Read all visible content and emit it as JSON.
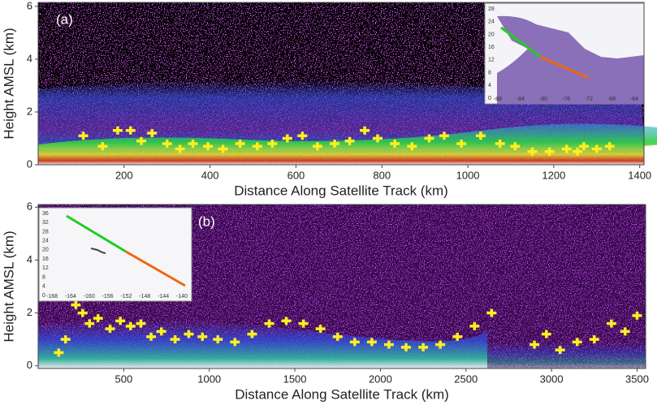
{
  "chart_data": [
    {
      "type": "scatter",
      "panel_label": "(a)",
      "x_label": "Distance Along Satellite Track (km)",
      "y_label": "Height AMSL (km)",
      "xlim": [
        0,
        1410
      ],
      "xticks": [
        200,
        400,
        600,
        800,
        1000,
        1200,
        1400
      ],
      "ylim": [
        0,
        6.15
      ],
      "yticks": [
        0,
        2,
        4,
        6
      ],
      "color": "#ffee22",
      "x": [
        105,
        150,
        185,
        215,
        240,
        265,
        300,
        330,
        360,
        395,
        430,
        470,
        510,
        545,
        580,
        615,
        650,
        690,
        725,
        760,
        790,
        830,
        870,
        910,
        945,
        985,
        1030,
        1075,
        1110,
        1150,
        1190,
        1230,
        1255,
        1270,
        1300,
        1330
      ],
      "values": [
        1.1,
        0.7,
        1.3,
        1.3,
        0.9,
        1.2,
        0.8,
        0.6,
        0.8,
        0.7,
        0.6,
        0.8,
        0.7,
        0.8,
        1.0,
        1.1,
        0.7,
        0.8,
        0.9,
        1.3,
        1.0,
        0.8,
        0.7,
        1.0,
        1.1,
        0.8,
        1.1,
        0.8,
        0.7,
        0.5,
        0.5,
        0.6,
        0.5,
        0.7,
        0.6,
        0.7
      ],
      "inset": {
        "yticks": [
          28,
          24,
          20,
          16,
          12,
          8,
          4,
          0
        ],
        "xticks": [
          -88,
          -84,
          -80,
          -76,
          -72,
          -68,
          -64
        ]
      }
    },
    {
      "type": "scatter",
      "panel_label": "(b)",
      "x_label": "Distance Along Satellite Track (km)",
      "y_label": "Height AMSL (km)",
      "xlim": [
        0,
        3550
      ],
      "xticks": [
        500,
        1000,
        1500,
        2000,
        2500,
        3000,
        3500
      ],
      "ylim": [
        -0.1,
        6.1
      ],
      "yticks": [
        0,
        2,
        4,
        6
      ],
      "color": "#ffee22",
      "x": [
        120,
        160,
        220,
        260,
        300,
        350,
        420,
        480,
        540,
        600,
        660,
        720,
        800,
        880,
        960,
        1050,
        1150,
        1250,
        1350,
        1450,
        1550,
        1650,
        1750,
        1850,
        1950,
        2050,
        2150,
        2250,
        2350,
        2450,
        2550,
        2650,
        2900,
        2970,
        3050,
        3150,
        3250,
        3350,
        3430,
        3500
      ],
      "values": [
        0.5,
        1.0,
        2.3,
        2.0,
        1.6,
        1.8,
        1.4,
        1.7,
        1.5,
        1.6,
        1.1,
        1.3,
        1.0,
        1.2,
        1.1,
        1.0,
        0.9,
        1.2,
        1.6,
        1.7,
        1.6,
        1.4,
        1.1,
        0.9,
        0.9,
        0.8,
        0.7,
        0.7,
        0.8,
        1.1,
        1.5,
        2.0,
        0.8,
        1.2,
        0.6,
        0.9,
        1.0,
        1.6,
        1.3,
        1.9
      ],
      "inset": {
        "yticks": [
          36,
          32,
          28,
          24,
          20,
          16,
          12,
          8,
          4,
          0
        ],
        "xticks": [
          -168,
          -164,
          -160,
          -156,
          -152,
          -148,
          -144,
          -140
        ]
      }
    }
  ]
}
